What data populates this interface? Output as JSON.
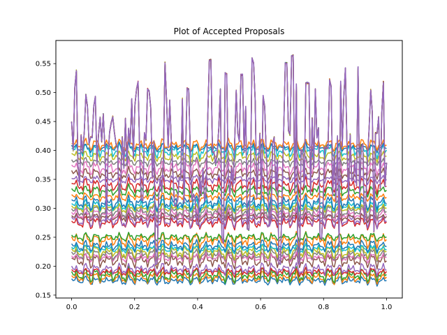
{
  "chart_data": {
    "type": "line",
    "title": "Plot of Accepted Proposals",
    "xlabel": "",
    "ylabel": "",
    "xlim": [
      -0.05,
      1.05
    ],
    "ylim": [
      0.145,
      0.59
    ],
    "x_ticks": [
      0.0,
      0.2,
      0.4,
      0.6,
      0.8,
      1.0
    ],
    "x_tick_labels": [
      "0.0",
      "0.2",
      "0.4",
      "0.6",
      "0.8",
      "1.0"
    ],
    "y_ticks": [
      0.15,
      0.2,
      0.25,
      0.3,
      0.35,
      0.4,
      0.45,
      0.5,
      0.55
    ],
    "y_tick_labels": [
      "0.15",
      "0.20",
      "0.25",
      "0.30",
      "0.35",
      "0.40",
      "0.45",
      "0.50",
      "0.55"
    ],
    "grid": false,
    "legend": "none",
    "x_range": [
      0.0,
      1.0
    ],
    "num_points": 200,
    "series_colors": [
      "#1f77b4",
      "#ff7f0e",
      "#2ca02c",
      "#d62728",
      "#9467bd",
      "#8c564b",
      "#e377c2",
      "#7f7f7f",
      "#bcbd22",
      "#17becf"
    ],
    "series_levels": [
      0.175,
      0.18,
      0.185,
      0.19,
      0.195,
      0.21,
      0.215,
      0.22,
      0.225,
      0.23,
      0.235,
      0.245,
      0.25,
      0.275,
      0.28,
      0.285,
      0.29,
      0.295,
      0.3,
      0.305,
      0.31,
      0.32,
      0.33,
      0.34,
      0.35,
      0.36,
      0.37,
      0.38,
      0.39,
      0.4,
      0.405,
      0.41
    ],
    "top_series_peak_x": [
      0.015,
      0.045,
      0.075,
      0.1,
      0.16,
      0.21,
      0.245,
      0.3,
      0.33,
      0.37,
      0.44,
      0.49,
      0.54,
      0.575,
      0.61,
      0.68,
      0.7,
      0.75,
      0.82,
      0.87,
      0.91,
      0.95,
      0.99
    ],
    "top_series_peak_y": [
      0.54,
      0.5,
      0.5,
      0.47,
      0.54,
      0.51,
      0.51,
      0.555,
      0.555,
      0.51,
      0.56,
      0.535,
      0.535,
      0.56,
      0.5,
      0.555,
      0.57,
      0.525,
      0.53,
      0.545,
      0.545,
      0.51,
      0.52
    ],
    "top_series_dip_x": [
      0.03,
      0.11,
      0.19,
      0.27,
      0.33,
      0.4,
      0.48,
      0.56,
      0.63,
      0.66,
      0.72,
      0.79,
      0.85,
      0.93,
      0.96
    ],
    "top_series_dip_y": [
      0.27,
      0.27,
      0.23,
      0.2,
      0.3,
      0.27,
      0.24,
      0.26,
      0.27,
      0.2,
      0.2,
      0.24,
      0.23,
      0.27,
      0.25
    ]
  }
}
